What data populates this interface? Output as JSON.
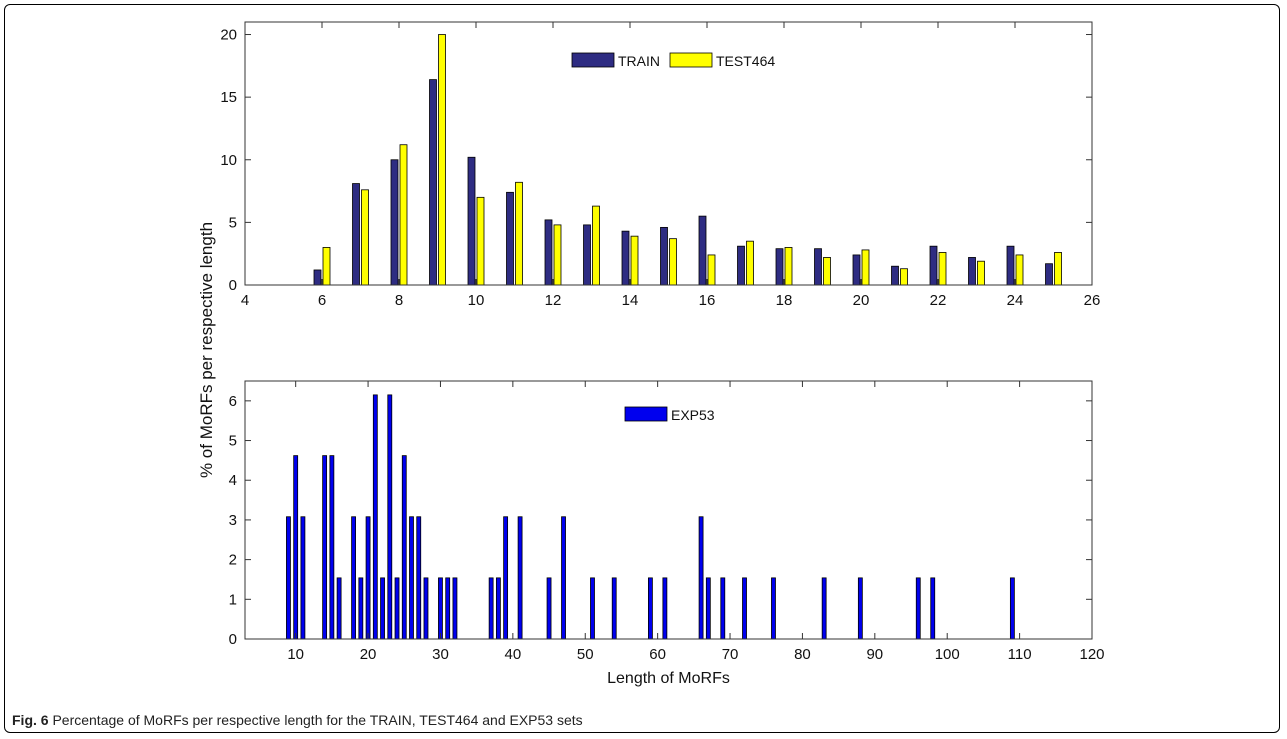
{
  "caption": {
    "label": "Fig. 6",
    "text": "Percentage of MoRFs per respective length for the TRAIN, TEST464 and EXP53 sets"
  },
  "shared_ylabel": "% of MoRFs per respective length",
  "colors": {
    "train": "#2e2c82",
    "test464": "#ffff00",
    "exp53": "#0000ee",
    "axis": "#333333"
  },
  "chart_data": [
    {
      "type": "bar",
      "xlabel": "",
      "ylabel": "% of MoRFs per respective length",
      "xlim": [
        4,
        26
      ],
      "ylim": [
        0,
        21
      ],
      "xticks": [
        4,
        6,
        8,
        10,
        12,
        14,
        16,
        18,
        20,
        22,
        24,
        26
      ],
      "yticks": [
        0,
        5,
        10,
        15,
        20
      ],
      "legend": "top-center",
      "x": [
        5,
        6,
        7,
        8,
        9,
        10,
        11,
        12,
        13,
        14,
        15,
        16,
        17,
        18,
        19,
        20,
        21,
        22,
        23,
        24,
        25
      ],
      "series": [
        {
          "name": "TRAIN",
          "values": [
            0,
            1.2,
            8.1,
            10.0,
            16.4,
            10.2,
            7.4,
            5.2,
            4.8,
            4.3,
            4.6,
            5.5,
            3.1,
            2.9,
            2.9,
            2.4,
            1.5,
            3.1,
            2.2,
            3.1,
            1.7
          ]
        },
        {
          "name": "TEST464",
          "values": [
            0,
            3.0,
            7.6,
            11.2,
            20.0,
            7.0,
            8.2,
            4.8,
            6.3,
            3.9,
            3.7,
            2.4,
            3.5,
            3.0,
            2.2,
            2.8,
            1.3,
            2.6,
            1.9,
            2.4,
            2.6
          ]
        }
      ]
    },
    {
      "type": "bar",
      "xlabel": "Length of MoRFs",
      "ylabel": "% of MoRFs per respective length",
      "xlim": [
        3,
        120
      ],
      "ylim": [
        0,
        6.5
      ],
      "xticks": [
        10,
        20,
        30,
        40,
        50,
        60,
        70,
        80,
        90,
        100,
        110,
        120
      ],
      "yticks": [
        0,
        1,
        2,
        3,
        4,
        5,
        6
      ],
      "legend": "top-center",
      "x": [
        9,
        10,
        11,
        14,
        15,
        16,
        18,
        19,
        20,
        21,
        22,
        23,
        24,
        25,
        26,
        27,
        28,
        30,
        31,
        32,
        37,
        38,
        39,
        41,
        45,
        47,
        51,
        54,
        59,
        61,
        66,
        67,
        69,
        72,
        76,
        83,
        88,
        96,
        98,
        109
      ],
      "series": [
        {
          "name": "EXP53",
          "values": [
            3.08,
            4.62,
            3.08,
            4.62,
            4.62,
            1.54,
            3.08,
            1.54,
            3.08,
            6.15,
            1.54,
            6.15,
            1.54,
            4.62,
            3.08,
            3.08,
            1.54,
            1.54,
            1.54,
            1.54,
            1.54,
            1.54,
            3.08,
            3.08,
            1.54,
            3.08,
            1.54,
            1.54,
            1.54,
            1.54,
            3.08,
            1.54,
            1.54,
            1.54,
            1.54,
            1.54,
            1.54,
            1.54,
            1.54,
            1.54
          ]
        }
      ]
    }
  ]
}
